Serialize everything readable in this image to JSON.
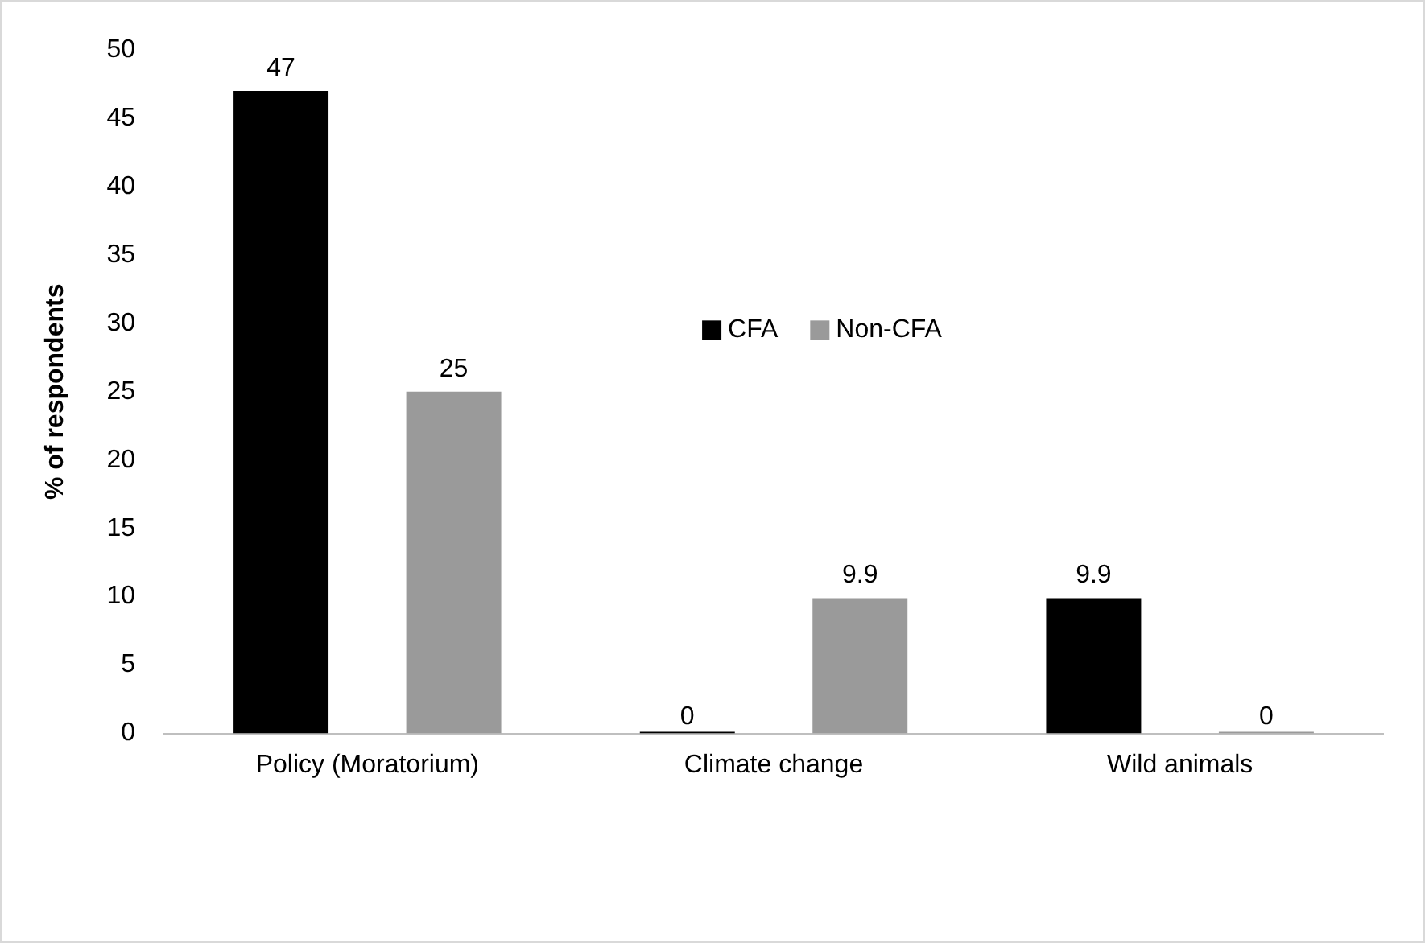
{
  "chart_data": {
    "type": "bar",
    "ylabel": "% of respondents",
    "categories": [
      "Policy (Moratorium)",
      "Climate change",
      "Wild animals"
    ],
    "series": [
      {
        "name": "CFA",
        "color": "#000000",
        "values": [
          47,
          0,
          9.9
        ]
      },
      {
        "name": "Non-CFA",
        "color": "#9a9a9a",
        "values": [
          25,
          9.9,
          0
        ]
      }
    ],
    "ylim": [
      0,
      50
    ],
    "yticks": [
      0,
      5,
      10,
      15,
      20,
      25,
      30,
      35,
      40,
      45,
      50
    ],
    "grid": false,
    "legend": "center",
    "data_labels": true
  }
}
